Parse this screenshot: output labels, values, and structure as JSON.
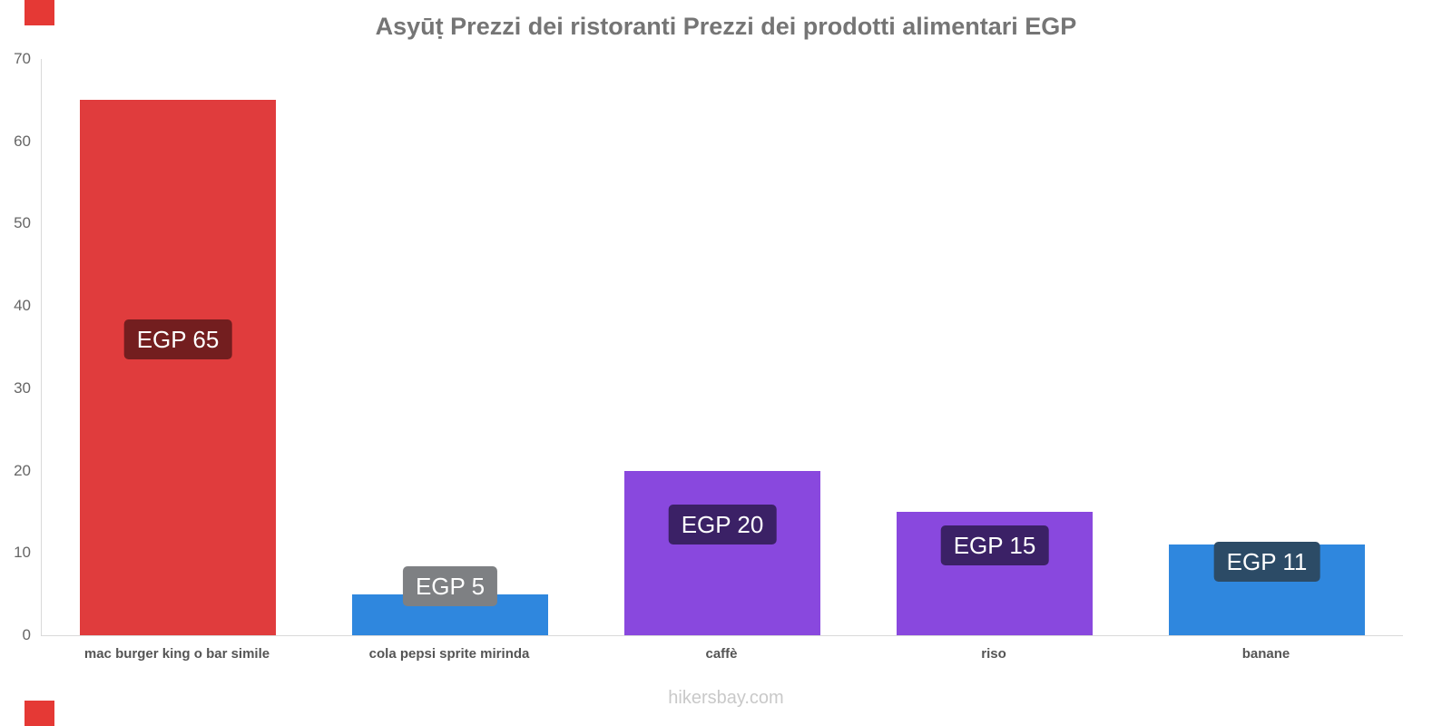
{
  "title": "Asyūṭ Prezzi dei ristoranti Prezzi dei prodotti alimentari EGP",
  "footer": "hikersbay.com",
  "decorations": {
    "color": "#e53935"
  },
  "chart_data": {
    "type": "bar",
    "title": "Asyūṭ Prezzi dei ristoranti Prezzi dei prodotti alimentari EGP",
    "xlabel": "",
    "ylabel": "",
    "ylim": [
      0,
      70
    ],
    "yticks": [
      0,
      10,
      20,
      30,
      40,
      50,
      60,
      70
    ],
    "grid": false,
    "legend": false,
    "categories": [
      "mac burger king o bar simile",
      "cola pepsi sprite mirinda",
      "caffè",
      "riso",
      "banane"
    ],
    "values": [
      65,
      5,
      20,
      15,
      11
    ],
    "value_labels": [
      "EGP 65",
      "EGP 5",
      "EGP 20",
      "EGP 15",
      "EGP 11"
    ],
    "bar_colors": [
      "#e03c3d",
      "#2f87de",
      "#8948de",
      "#8948de",
      "#2f87de"
    ],
    "badge_colors": [
      "#731e1f",
      "#7e8083",
      "#3b2166",
      "#3b2166",
      "#2c4b66"
    ],
    "axis_color": "#d9d9d9",
    "tick_label_color": "#666666"
  }
}
